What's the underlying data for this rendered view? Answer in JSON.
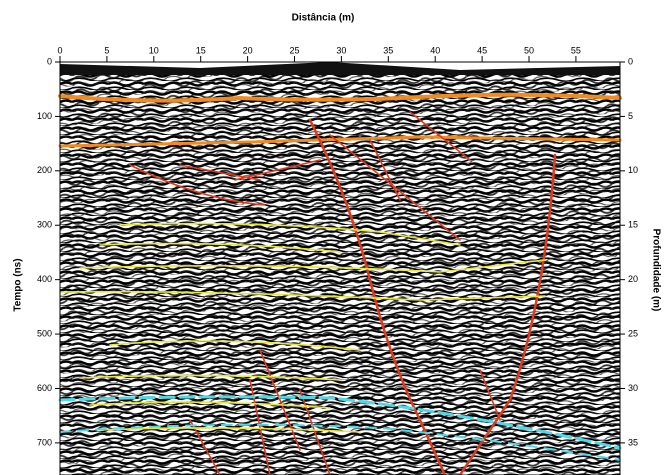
{
  "chart_data": {
    "type": "radargram",
    "xlabel": "Distância (m)",
    "ylabel": "Tempo (ns)",
    "y2label": "Profundidade (m)",
    "xlim": [
      0,
      59.7
    ],
    "xticks": [
      0,
      5,
      10,
      15,
      20,
      25,
      30,
      35,
      40,
      45,
      50,
      55
    ],
    "ylim": [
      0,
      759
    ],
    "yticks": [
      0,
      100,
      200,
      300,
      400,
      500,
      600,
      700
    ],
    "y2lim": [
      0,
      37.95
    ],
    "y2ticks": [
      0,
      5,
      10,
      15,
      20,
      25,
      30,
      35
    ]
  }
}
